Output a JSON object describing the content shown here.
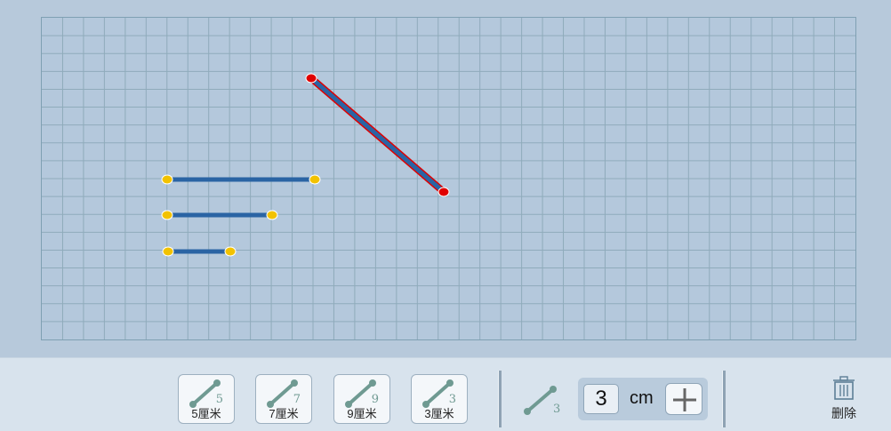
{
  "colors": {
    "grid_line": "#8fabbb",
    "segment": "#2a64a4",
    "endpoint": "#f2c200",
    "selected_endpoint": "#e00000",
    "selected_outline": "#e00000"
  },
  "grid": {
    "columns": 39,
    "rows": 18
  },
  "segments": [
    {
      "id": "segment-1",
      "length": 7,
      "selected": false
    },
    {
      "id": "segment-2",
      "length": 5,
      "selected": false
    },
    {
      "id": "segment-3",
      "length": 3,
      "selected": false
    },
    {
      "id": "segment-4",
      "length": 9,
      "selected": true
    }
  ],
  "toolbar": {
    "presets": [
      {
        "number": "5",
        "label": "5厘米",
        "icon": "ruler-segment-icon"
      },
      {
        "number": "7",
        "label": "7厘米",
        "icon": "ruler-segment-icon"
      },
      {
        "number": "9",
        "label": "9厘米",
        "icon": "ruler-segment-icon"
      },
      {
        "number": "3",
        "label": "3厘米",
        "icon": "ruler-segment-icon"
      }
    ],
    "current_number": "3",
    "length_value": "3",
    "unit": "cm",
    "add_icon": "plus-icon",
    "delete_label": "删除",
    "delete_icon": "trash-icon"
  }
}
